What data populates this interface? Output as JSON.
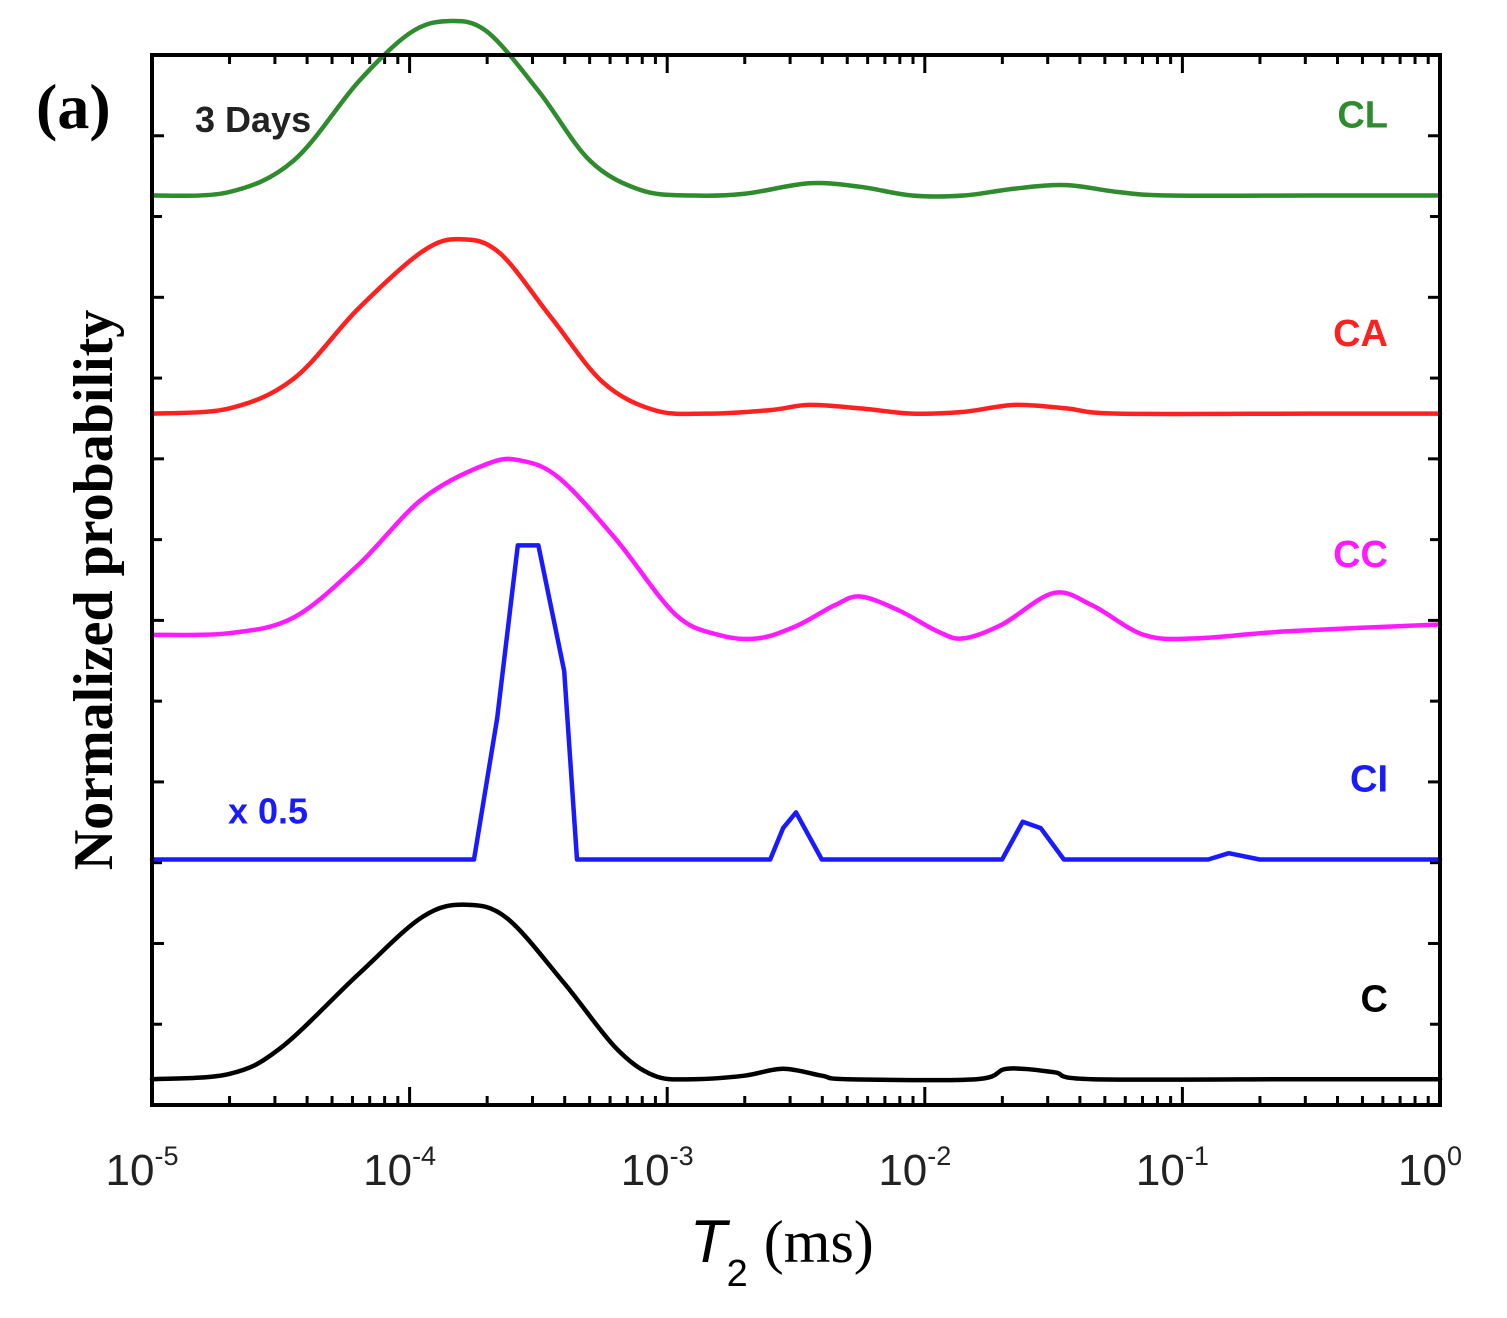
{
  "panel_label": "(a)",
  "chart_data": {
    "type": "line",
    "title": "3 Days",
    "xlabel": {
      "symbol": "T",
      "subscript": "2",
      "unit": "(ms)"
    },
    "ylabel": "Normalized probability",
    "xscale": "log",
    "xlim_exponents": [
      -5,
      0
    ],
    "x_ticks": [
      {
        "base": "10",
        "exp": "-5"
      },
      {
        "base": "10",
        "exp": "-4"
      },
      {
        "base": "10",
        "exp": "-3"
      },
      {
        "base": "10",
        "exp": "-2"
      },
      {
        "base": "10",
        "exp": "-1"
      },
      {
        "base": "10",
        "exp": "0"
      }
    ],
    "y_axis_note": "curves vertically offset; y axis has no numeric labels",
    "y_track_count": 6.5,
    "scale_note": {
      "text": "x 0.5",
      "series": "CI"
    },
    "series": [
      {
        "name": "CL",
        "label": "CL",
        "color": "#2e8b2e",
        "baseline_track": 5.63,
        "points": [
          [
            -5,
            0
          ],
          [
            -4.7,
            0.02
          ],
          [
            -4.45,
            0.2
          ],
          [
            -4.2,
            0.65
          ],
          [
            -4.0,
            0.93
          ],
          [
            -3.85,
            1.0
          ],
          [
            -3.7,
            0.94
          ],
          [
            -3.5,
            0.6
          ],
          [
            -3.3,
            0.2
          ],
          [
            -3.1,
            0.03
          ],
          [
            -2.9,
            0
          ],
          [
            -2.7,
            0.01
          ],
          [
            -2.45,
            0.07
          ],
          [
            -2.25,
            0.05
          ],
          [
            -2.05,
            0
          ],
          [
            -1.85,
            0
          ],
          [
            -1.65,
            0.04
          ],
          [
            -1.45,
            0.06
          ],
          [
            -1.25,
            0.02
          ],
          [
            -1.05,
            0
          ],
          [
            -0.5,
            0
          ],
          [
            0,
            0
          ]
        ]
      },
      {
        "name": "CA",
        "label": "CA",
        "color": "#ff2020",
        "baseline_track": 4.28,
        "points": [
          [
            -5,
            0
          ],
          [
            -4.7,
            0.03
          ],
          [
            -4.45,
            0.2
          ],
          [
            -4.2,
            0.6
          ],
          [
            -3.95,
            0.93
          ],
          [
            -3.8,
            1.0
          ],
          [
            -3.65,
            0.92
          ],
          [
            -3.45,
            0.55
          ],
          [
            -3.25,
            0.18
          ],
          [
            -3.05,
            0.02
          ],
          [
            -2.85,
            0
          ],
          [
            -2.6,
            0.02
          ],
          [
            -2.45,
            0.05
          ],
          [
            -2.25,
            0.03
          ],
          [
            -2.05,
            0
          ],
          [
            -1.85,
            0.01
          ],
          [
            -1.65,
            0.05
          ],
          [
            -1.45,
            0.03
          ],
          [
            -1.25,
            0
          ],
          [
            -0.5,
            0
          ],
          [
            0,
            0
          ]
        ]
      },
      {
        "name": "CC",
        "label": "CC",
        "color": "#ff1aff",
        "baseline_track": 2.91,
        "points": [
          [
            -5,
            0
          ],
          [
            -4.7,
            0.01
          ],
          [
            -4.45,
            0.1
          ],
          [
            -4.2,
            0.4
          ],
          [
            -3.95,
            0.78
          ],
          [
            -3.7,
            0.98
          ],
          [
            -3.57,
            1.0
          ],
          [
            -3.42,
            0.9
          ],
          [
            -3.2,
            0.55
          ],
          [
            -2.97,
            0.12
          ],
          [
            -2.8,
            0
          ],
          [
            -2.65,
            -0.02
          ],
          [
            -2.5,
            0.05
          ],
          [
            -2.35,
            0.17
          ],
          [
            -2.25,
            0.22
          ],
          [
            -2.1,
            0.14
          ],
          [
            -1.95,
            0.02
          ],
          [
            -1.85,
            -0.02
          ],
          [
            -1.7,
            0.06
          ],
          [
            -1.5,
            0.24
          ],
          [
            -1.35,
            0.17
          ],
          [
            -1.15,
            0
          ],
          [
            -0.95,
            -0.02
          ],
          [
            -0.6,
            0.02
          ],
          [
            0,
            0.06
          ]
        ]
      },
      {
        "name": "CI",
        "label": "CI",
        "color": "#1a1aff",
        "baseline_track": 1.52,
        "points": [
          [
            -5,
            0
          ],
          [
            -3.75,
            0
          ],
          [
            -3.66,
            0.45
          ],
          [
            -3.58,
            1.0
          ],
          [
            -3.5,
            1.0
          ],
          [
            -3.4,
            0.6
          ],
          [
            -3.35,
            0
          ],
          [
            -2.6,
            0
          ],
          [
            -2.55,
            0.1
          ],
          [
            -2.5,
            0.15
          ],
          [
            -2.4,
            0
          ],
          [
            -1.7,
            0
          ],
          [
            -1.62,
            0.12
          ],
          [
            -1.55,
            0.1
          ],
          [
            -1.46,
            0
          ],
          [
            -0.9,
            0
          ],
          [
            -0.82,
            0.02
          ],
          [
            -0.7,
            0
          ],
          [
            0,
            0
          ]
        ],
        "peak_height": 1.8
      },
      {
        "name": "C",
        "label": "C",
        "color": "#000000",
        "baseline_track": 0.16,
        "points": [
          [
            -5,
            0
          ],
          [
            -4.7,
            0.03
          ],
          [
            -4.5,
            0.18
          ],
          [
            -4.2,
            0.6
          ],
          [
            -3.95,
            0.93
          ],
          [
            -3.78,
            1.0
          ],
          [
            -3.62,
            0.92
          ],
          [
            -3.4,
            0.55
          ],
          [
            -3.2,
            0.18
          ],
          [
            -3.05,
            0.02
          ],
          [
            -2.9,
            0
          ],
          [
            -2.7,
            0.02
          ],
          [
            -2.55,
            0.06
          ],
          [
            -2.4,
            0.02
          ],
          [
            -2.3,
            0
          ],
          [
            -1.8,
            0
          ],
          [
            -1.68,
            0.06
          ],
          [
            -1.5,
            0.04
          ],
          [
            -1.35,
            0
          ],
          [
            -0.5,
            0
          ],
          [
            0,
            0
          ]
        ]
      }
    ]
  }
}
